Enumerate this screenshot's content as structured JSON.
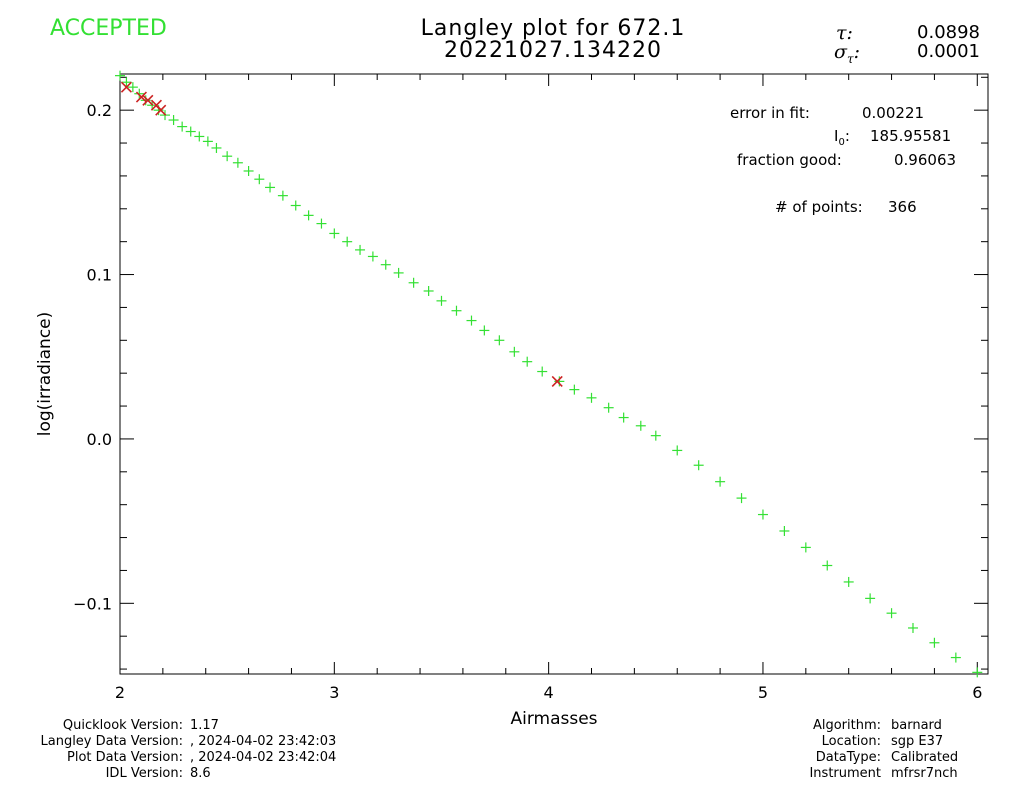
{
  "status": {
    "text": "ACCEPTED",
    "color": "#33e033"
  },
  "title": {
    "line1": "Langley plot for 672.1",
    "line2": "20221027.134220"
  },
  "tau": {
    "symbol": "τ:",
    "value": "0.0898"
  },
  "sigma_tau": {
    "symbol_main": "σ",
    "symbol_sub": "τ",
    "colon": ":",
    "value": "0.0001"
  },
  "stats": {
    "error_label": "error in fit:",
    "error_value": "0.00221",
    "i0_label_main": "I",
    "i0_label_sub": "0",
    "i0_colon": ":",
    "i0_value": "185.95581",
    "fraction_label": "fraction good:",
    "fraction_value": "0.96063",
    "points_label": "# of points:",
    "points_value": "366"
  },
  "footer_left": {
    "labels": [
      "Quicklook Version:",
      "Langley Data Version:",
      "Plot Data Version:",
      "IDL Version:"
    ],
    "values": [
      "1.17",
      ", 2024-04-02 23:42:03",
      ", 2024-04-02 23:42:04",
      "8.6"
    ]
  },
  "footer_right": {
    "labels": [
      "Algorithm:",
      "Location:",
      "DataType:",
      "Instrument"
    ],
    "values": [
      "barnard",
      "sgp E37",
      "Calibrated",
      "mfrsr7nch"
    ]
  },
  "chart_data": {
    "type": "scatter",
    "xlabel": "Airmasses",
    "ylabel": "log(irradiance)",
    "xlim": [
      2.0,
      6.05
    ],
    "ylim": [
      -0.143,
      0.222
    ],
    "x_ticks": [
      2,
      3,
      4,
      5,
      6
    ],
    "x_tick_labels": [
      "2",
      "3",
      "4",
      "5",
      "6"
    ],
    "y_ticks": [
      -0.1,
      0.0,
      0.1,
      0.2
    ],
    "y_tick_labels": [
      "−0.1",
      "0.0",
      "0.1",
      "0.2"
    ],
    "grid": false,
    "series": [
      {
        "marker": "plus",
        "color": "#33e033",
        "x": [
          2.0,
          2.03,
          2.06,
          2.09,
          2.12,
          2.15,
          2.18,
          2.21,
          2.25,
          2.29,
          2.33,
          2.37,
          2.41,
          2.45,
          2.5,
          2.55,
          2.6,
          2.65,
          2.7,
          2.76,
          2.82,
          2.88,
          2.94,
          3.0,
          3.06,
          3.12,
          3.18,
          3.24,
          3.3,
          3.37,
          3.44,
          3.5,
          3.57,
          3.64,
          3.7,
          3.77,
          3.84,
          3.9,
          3.97,
          4.05,
          4.12,
          4.2,
          4.28,
          4.35,
          4.43,
          4.5,
          4.6,
          4.7,
          4.8,
          4.9,
          5.0,
          5.1,
          5.2,
          5.3,
          5.4,
          5.5,
          5.6,
          5.7,
          5.8,
          5.9,
          6.0
        ],
        "y": [
          0.221,
          0.217,
          0.214,
          0.21,
          0.206,
          0.203,
          0.2,
          0.197,
          0.194,
          0.19,
          0.187,
          0.184,
          0.181,
          0.177,
          0.172,
          0.168,
          0.163,
          0.158,
          0.153,
          0.148,
          0.142,
          0.136,
          0.131,
          0.125,
          0.12,
          0.115,
          0.111,
          0.106,
          0.101,
          0.095,
          0.09,
          0.084,
          0.078,
          0.072,
          0.066,
          0.06,
          0.053,
          0.047,
          0.041,
          0.035,
          0.03,
          0.025,
          0.019,
          0.013,
          0.008,
          0.002,
          -0.007,
          -0.016,
          -0.026,
          -0.036,
          -0.046,
          -0.056,
          -0.066,
          -0.077,
          -0.087,
          -0.097,
          -0.106,
          -0.115,
          -0.124,
          -0.133,
          -0.142
        ]
      },
      {
        "marker": "x",
        "color": "#cc2222",
        "x": [
          2.03,
          2.1,
          2.13,
          2.17,
          2.19,
          4.04
        ],
        "y": [
          0.214,
          0.208,
          0.206,
          0.203,
          0.2,
          0.035
        ]
      }
    ]
  }
}
